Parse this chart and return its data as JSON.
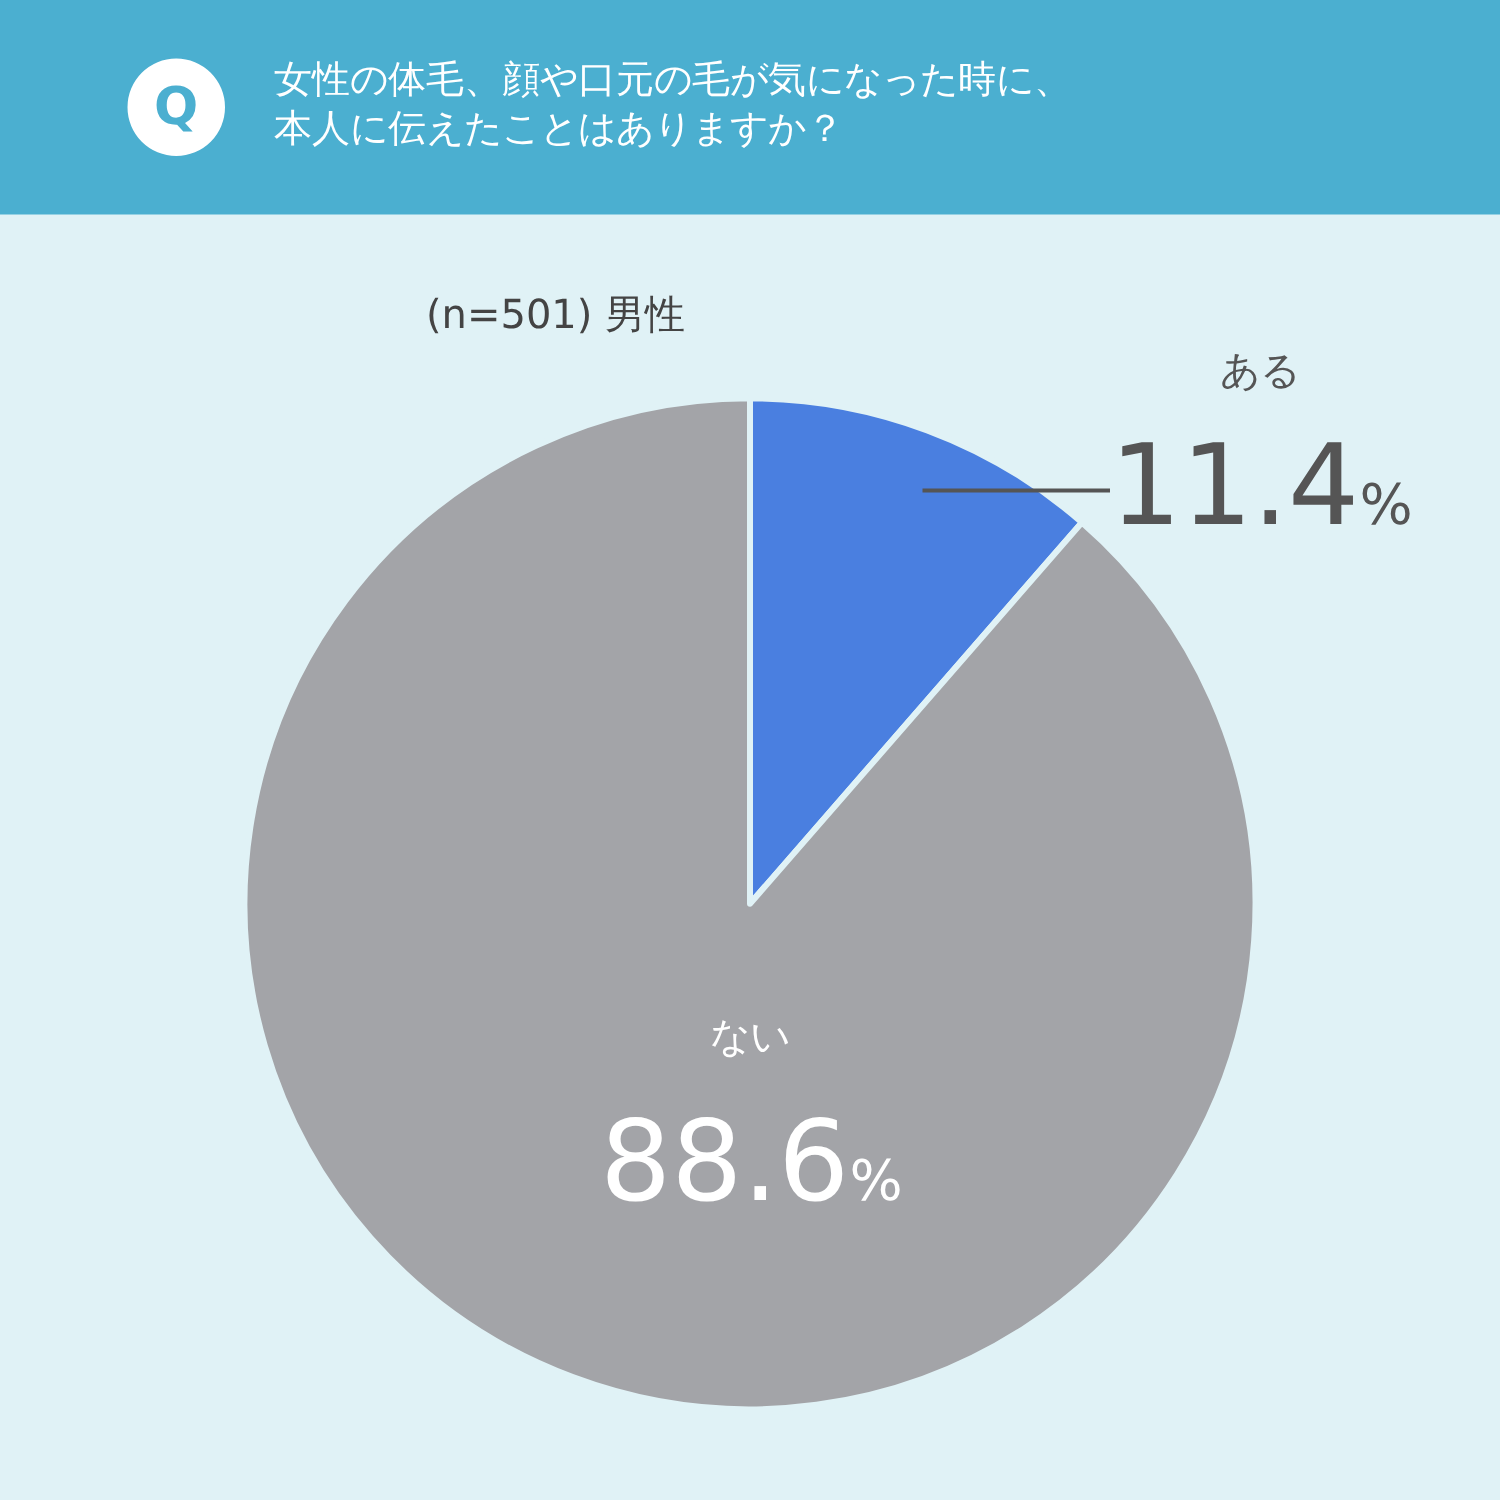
{
  "chart_data": {
    "type": "pie",
    "title": "女性の体毛、顔や口元の毛が気になった時に、本人に伝えたことはありますか？",
    "subtitle": "(n=501) 男性",
    "annotations": [
      "Q"
    ],
    "categories": [
      "ある",
      "ない"
    ],
    "values": [
      11.4,
      88.6
    ],
    "value_labels": [
      "11.4%",
      "88.6%"
    ],
    "colors": [
      "#4a7fe0",
      "#a3a4a8"
    ],
    "legend": false
  }
}
